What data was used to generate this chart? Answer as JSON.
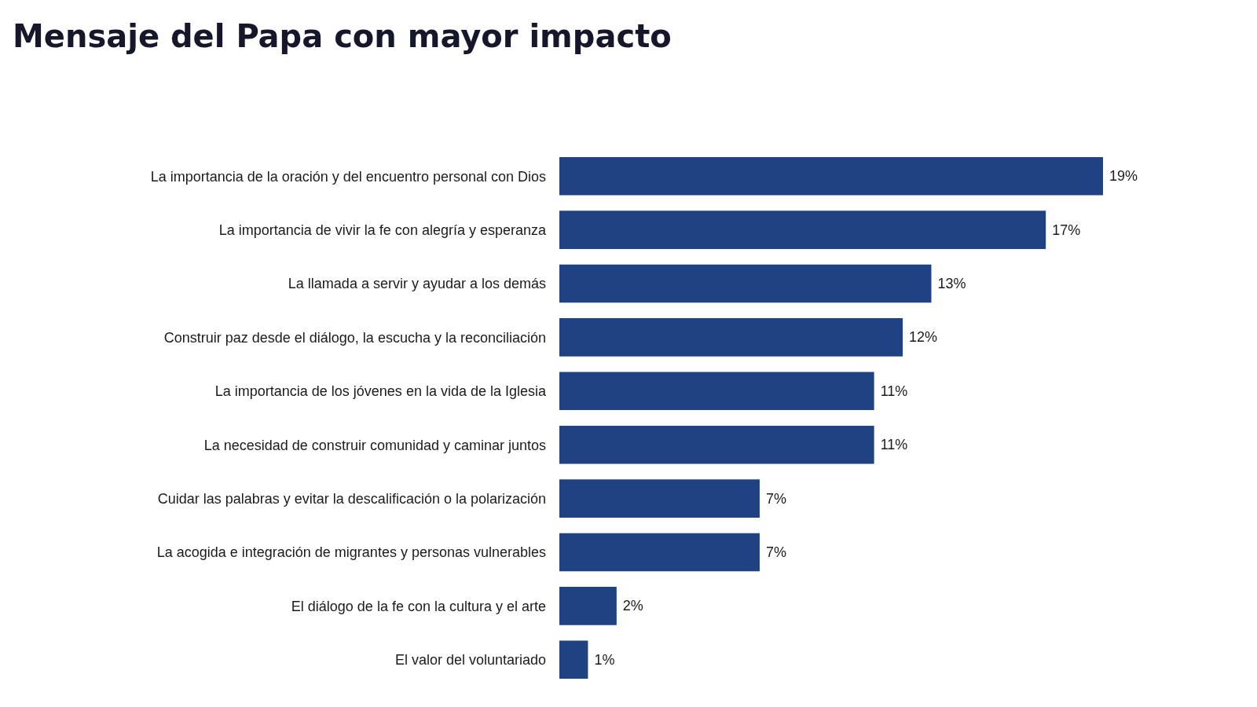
{
  "chart_data": {
    "type": "bar",
    "title": "Mensaje del Papa con mayor impacto",
    "orientation": "horizontal",
    "categories": [
      "La importancia de la oración y del encuentro personal con Dios",
      "La importancia de vivir la fe con alegría y esperanza",
      "La llamada a servir y ayudar a los demás",
      "Construir paz desde el diálogo, la escucha y la reconciliación",
      "La importancia de los jóvenes en la vida de la Iglesia",
      "La necesidad de construir comunidad y caminar juntos",
      "Cuidar las palabras y evitar la descalificación o la polarización",
      "La acogida e integración de migrantes y personas vulnerables",
      "El diálogo de la fe con la cultura y el arte",
      "El valor del voluntariado"
    ],
    "values": [
      19,
      17,
      13,
      12,
      11,
      11,
      7,
      7,
      2,
      1
    ],
    "value_labels": [
      "19%",
      "17%",
      "13%",
      "12%",
      "11%",
      "11%",
      "7%",
      "7%",
      "2%",
      "1%"
    ],
    "color": "#1f4283",
    "xlim": [
      0,
      19
    ],
    "tick_labels": "y"
  }
}
